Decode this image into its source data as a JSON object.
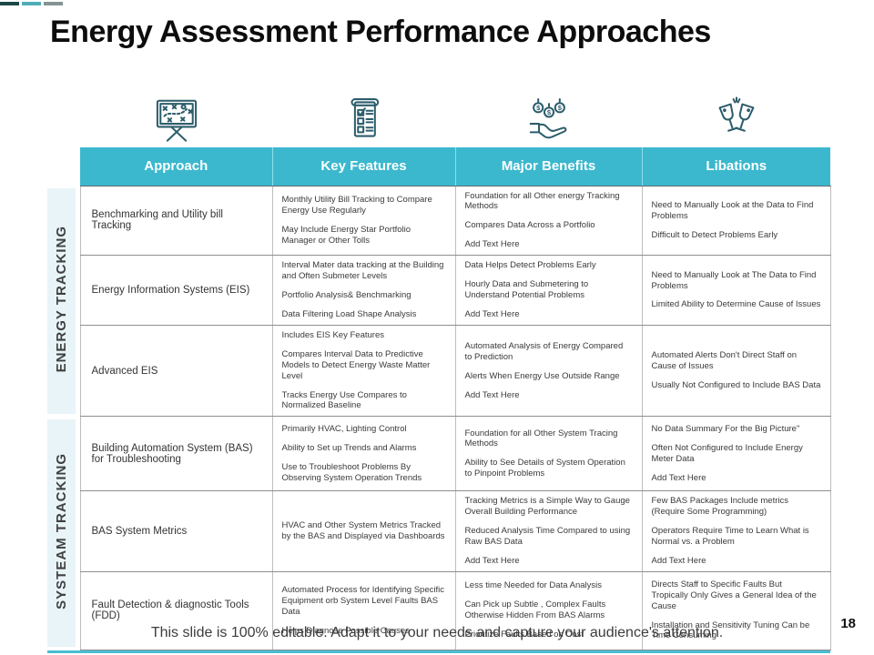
{
  "slide": {
    "title": "Energy Assessment Performance Approaches",
    "footer": "This slide is 100% editable. Adapt it to your needs and capture your audience's attention.",
    "page_number": "18"
  },
  "icons": [
    "strategy-board-icon",
    "checklist-icon",
    "money-hand-icon",
    "celebration-glasses-icon"
  ],
  "colors": {
    "header_teal": "#3bb8ce",
    "accent_line": "#49bdd1",
    "group_strip": "#e8f4f8",
    "icon_stroke": "#2c5d6b",
    "deco_bar_dark": "#1d4747",
    "deco_bar_teal": "#4fadb6",
    "deco_bar_gray": "#849393"
  },
  "table": {
    "headers": [
      "Approach",
      "Key Features",
      "Major Benefits",
      "Libations"
    ],
    "groups": [
      {
        "label": "ENERGY TRACKING",
        "rows": [
          {
            "approach": "Benchmarking and Utility bill Tracking",
            "features": [
              "Monthly  Utility  Bill Tracking  to  Compare  Energy  Use Regularly",
              "May Include  Energy  Star Portfolio  Manager  or Other Tolls"
            ],
            "benefits": [
              "Foundation  for all Other energy  Tracking  Methods",
              "Compares  Data Across  a Portfolio",
              "Add Text  Here"
            ],
            "libations": [
              "Need to Manually  Look  at the  Data to Find Problems",
              "Difficult to  Detect  Problems   Early"
            ]
          },
          {
            "approach": "Energy Information Systems (EIS)",
            "features": [
              "Interval  Mater data  tracking  at the  Building  and  Often Submeter   Levels",
              "Portfolio  Analysis&  Benchmarking",
              "Data  Filtering Load  Shape   Analysis"
            ],
            "benefits": [
              "Data Helps  Detect Problems  Early",
              "Hourly  Data  and  Submetering   to  Understand   Potential Problems",
              "Add Text  Here"
            ],
            "libations": [
              "Need to Manually  Look  at The  Data to  Find Problems",
              "Limited   Ability  to Determine  Cause  of Issues"
            ]
          },
          {
            "approach": "Advanced EIS",
            "features": [
              "Includes  EIS Key  Features",
              "Compares  Interval  Data to Predictive  Models  to Detect Energy  Waste  Matter  Level",
              "Tracks  Energy  Use Compares   to Normalized Baseline"
            ],
            "benefits": [
              "Automated   Analysis  of  Energy  Compared   to Prediction",
              "Alerts  When  Energy  Use Outside  Range",
              "Add Text  Here"
            ],
            "libations": [
              "Automated   Alerts  Don't Direct  Staff on  Cause  of Issues",
              "Usually  Not  Configured  to  Include  BAS  Data"
            ]
          }
        ]
      },
      {
        "label": "SYSTEAM TRACKING",
        "rows": [
          {
            "approach": "Building Automation System (BAS)  for Troubleshooting",
            "features": [
              "Primarily  HVAC,  Lighting  Control",
              "Ability  to Set  up  Trends  and  Alarms",
              "Use to  Troubleshoot  Problems  By  Observing  System Operation  Trends"
            ],
            "benefits": [
              "Foundation  for  all Other  System   Tracing  Methods",
              "Ability  to See  Details  of System  Operation  to  Pinpoint Problems"
            ],
            "libations": [
              "No Data  Summary   For the  Big  Picture\"",
              "Often  Not  Configured  to  Include  Energy  Meter  Data",
              "Add  Text  Here"
            ]
          },
          {
            "approach": "BAS System Metrics",
            "features": [
              "HVAC and  Other  System   Metrics Tracked  by  the  BAS and  Displayed  via  Dashboards"
            ],
            "benefits": [
              "Tracking   Metrics  is a  Simple  Way  to Gauge  Overall Building  Performance",
              "Reduced  Analysis   Time  Compared  to  using  Raw  BAS Data",
              "Add  Text  Here"
            ],
            "libations": [
              "Few BAS  Packages   Include  metrics  (Require  Some Programming)",
              "Operators   Require  Time  to  Learn   What  is  Normal  vs. a  Problem",
              "Add  Text  Here"
            ]
          },
          {
            "approach": "Fault Detection &   diagnostic Tools  (FDD)",
            "features": [
              "Automated   Process  for  Identifying  Specific  Equipment orb  System   Level   Faults  BAS  Data",
              "Helps  Diagnose  Possible  Causes"
            ],
            "benefits": [
              "Less  time  Needed   for Data  Analysis",
              "Can  Pick  up  Subtle  ,  Complex   Faults  Otherwise Hidden   From  BAS  Alarms",
              "Prioritize  Faults  Based  on  Cost"
            ],
            "libations": [
              "Directs  Staff  to  Specific   Faults  But  Tropically   Only Gives  a  General   Idea  of  the  Cause",
              "Installation   and  Sensitivity   Tuning  Can  be  Time Consuming"
            ]
          }
        ]
      }
    ]
  }
}
